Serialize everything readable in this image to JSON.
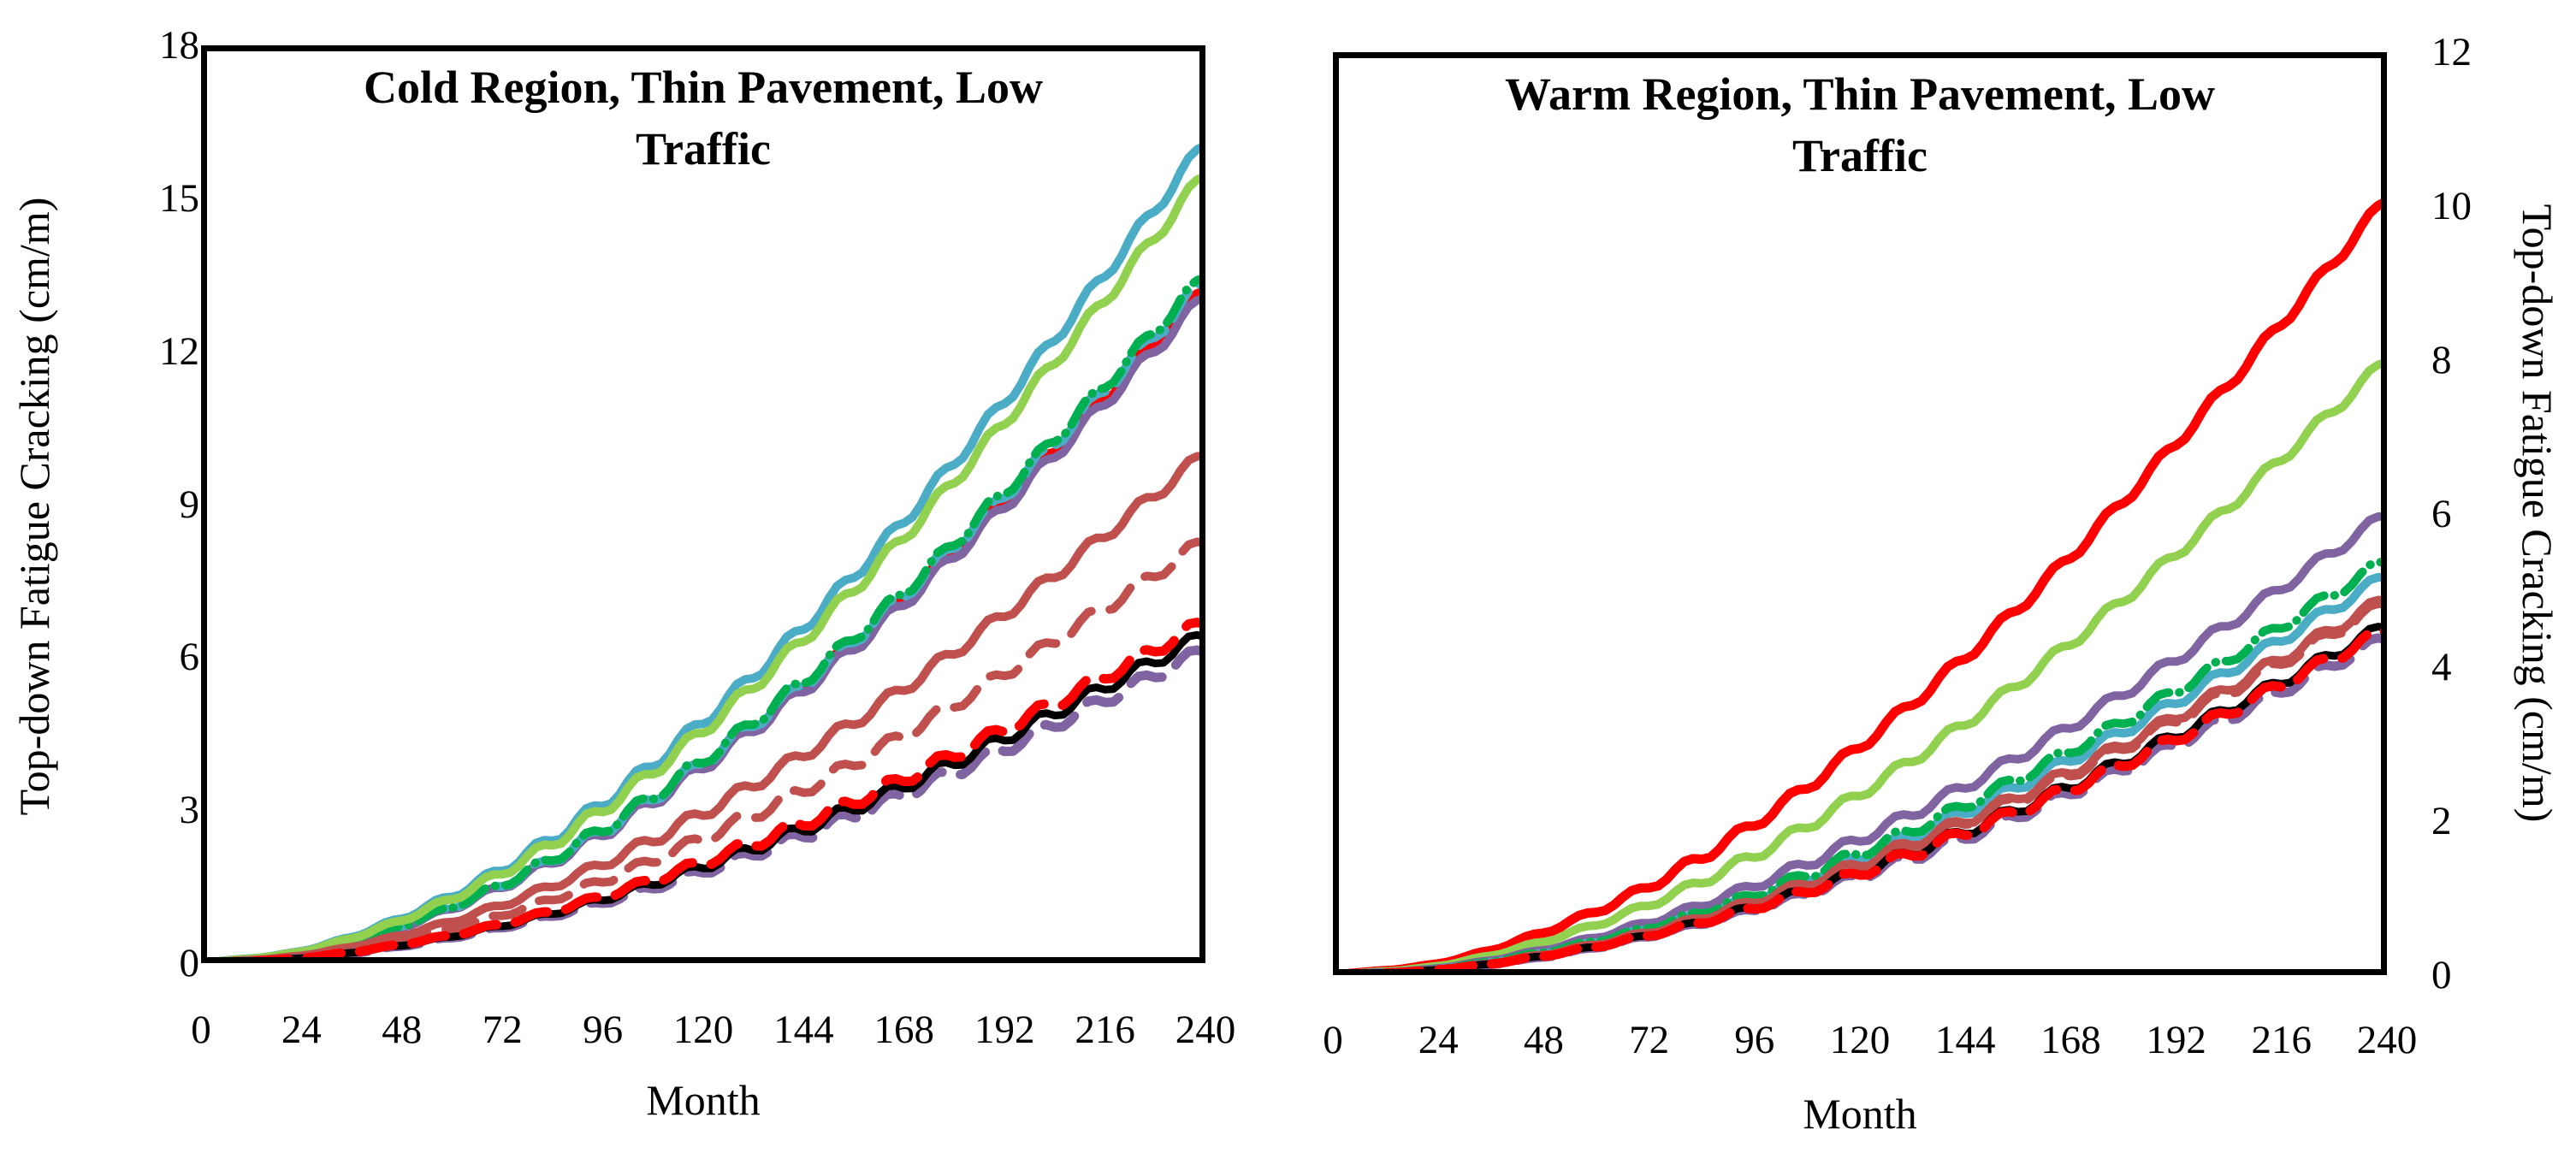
{
  "figure": {
    "background": "#FFFFFF",
    "panel_count": 2
  },
  "chart_data": [
    {
      "type": "line",
      "panel": "left",
      "title_lines": [
        "Cold Region, Thin Pavement, Low",
        "Traffic"
      ],
      "x_axis": {
        "label": "Month",
        "min": 0,
        "max": 240,
        "tick_step": 24,
        "ticks": [
          0,
          24,
          48,
          72,
          96,
          120,
          144,
          168,
          192,
          216,
          240
        ]
      },
      "y_axis": {
        "label": "Top-down Fatigue Cracking (cm/m)",
        "min": 0,
        "max": 18,
        "tick_step": 3,
        "ticks": [
          0,
          3,
          6,
          9,
          12,
          15,
          18
        ],
        "side": "left"
      },
      "grid": false,
      "legend": "none",
      "x_months": [
        0,
        24,
        48,
        72,
        96,
        120,
        144,
        168,
        192,
        216,
        240
      ],
      "series": [
        {
          "name": "red-solid",
          "color": "#FF0000",
          "dash": "solid",
          "width": 9,
          "values": [
            0,
            0.2,
            0.73,
            1.52,
            2.58,
            3.91,
            5.43,
            7.16,
            9.08,
            11.13,
            13.25
          ]
        },
        {
          "name": "purple-solid",
          "color": "#8064A2",
          "dash": "solid",
          "width": 10,
          "values": [
            0,
            0.2,
            0.72,
            1.51,
            2.55,
            3.86,
            5.37,
            7.07,
            8.97,
            11.0,
            13.1
          ]
        },
        {
          "name": "teal-dashed",
          "color": "#4BACC6",
          "dash": "dashed",
          "dash_pattern": [
            36,
            16
          ],
          "dash_offset": 0,
          "width": 10,
          "values": [
            0,
            0.2,
            0.74,
            1.54,
            2.61,
            3.95,
            5.49,
            7.24,
            9.18,
            11.26,
            13.4
          ]
        },
        {
          "name": "green-dash-dot",
          "color": "#00B050",
          "dash": "dash-dot",
          "dash_pattern": [
            32,
            12,
            0.5,
            12
          ],
          "dash_offset": 22,
          "width": 10,
          "values": [
            0,
            0.2,
            0.74,
            1.55,
            2.63,
            3.98,
            5.54,
            7.29,
            9.25,
            11.34,
            13.5
          ]
        },
        {
          "name": "teal-solid",
          "color": "#4BACC6",
          "dash": "solid",
          "width": 10,
          "values": [
            0,
            0.24,
            0.89,
            1.85,
            3.14,
            4.75,
            6.6,
            8.69,
            11.03,
            13.52,
            16.1
          ]
        },
        {
          "name": "green-solid",
          "color": "#92D050",
          "dash": "solid",
          "width": 10,
          "values": [
            0,
            0.23,
            0.85,
            1.78,
            3.02,
            4.57,
            6.36,
            8.37,
            10.62,
            13.02,
            15.5
          ]
        },
        {
          "name": "brown-solid",
          "color": "#C0504D",
          "dash": "solid",
          "width": 10,
          "values": [
            0,
            0.15,
            0.55,
            1.15,
            1.95,
            2.95,
            4.1,
            5.4,
            6.85,
            8.4,
            10.0
          ]
        },
        {
          "name": "brown-dashed",
          "color": "#C0504D",
          "dash": "dashed",
          "dash_pattern": [
            36,
            22
          ],
          "dash_offset": 0,
          "width": 10,
          "values": [
            0,
            0.12,
            0.46,
            0.95,
            1.62,
            2.45,
            3.4,
            4.48,
            5.69,
            6.97,
            8.3
          ]
        },
        {
          "name": "purple-dashed",
          "color": "#8064A2",
          "dash": "dashed",
          "dash_pattern": [
            40,
            22
          ],
          "dash_offset": 31,
          "width": 11,
          "values": [
            0,
            0.09,
            0.34,
            0.71,
            1.2,
            1.81,
            2.52,
            3.32,
            4.21,
            5.17,
            6.15
          ]
        },
        {
          "name": "black-solid",
          "color": "#000000",
          "dash": "solid",
          "width": 9,
          "values": [
            0,
            0.1,
            0.35,
            0.74,
            1.26,
            1.9,
            2.64,
            3.48,
            4.42,
            5.42,
            6.45
          ]
        },
        {
          "name": "red-dashed",
          "color": "#FF0000",
          "dash": "dashed",
          "dash_pattern": [
            40,
            22
          ],
          "dash_offset": 0,
          "width": 11,
          "values": [
            0,
            0.1,
            0.37,
            0.77,
            1.31,
            1.98,
            2.75,
            3.62,
            4.59,
            5.63,
            6.7
          ]
        }
      ]
    },
    {
      "type": "line",
      "panel": "right",
      "title_lines": [
        "Warm Region, Thin Pavement, Low",
        "Traffic"
      ],
      "x_axis": {
        "label": "Month",
        "min": 0,
        "max": 240,
        "tick_step": 24,
        "ticks": [
          0,
          24,
          48,
          72,
          96,
          120,
          144,
          168,
          192,
          216,
          240
        ]
      },
      "y_axis": {
        "label": "Top-down Fatigue Cracking (cm/m)",
        "min": 0,
        "max": 12,
        "tick_step": 2,
        "ticks": [
          0,
          2,
          4,
          6,
          8,
          10,
          12
        ],
        "side": "right"
      },
      "grid": false,
      "legend": "none",
      "x_months": [
        0,
        24,
        48,
        72,
        96,
        120,
        144,
        168,
        192,
        216,
        240
      ],
      "series": [
        {
          "name": "teal-dashed",
          "color": "#4BACC6",
          "dash": "dashed",
          "dash_pattern": [
            36,
            16
          ],
          "dash_offset": 0,
          "width": 10,
          "values": [
            0,
            0.08,
            0.29,
            0.6,
            1.01,
            1.53,
            2.13,
            2.81,
            3.56,
            4.37,
            5.2
          ]
        },
        {
          "name": "brown-dashed",
          "color": "#C0504D",
          "dash": "dashed",
          "dash_pattern": [
            36,
            22
          ],
          "dash_offset": 0,
          "width": 10,
          "values": [
            0,
            0.07,
            0.27,
            0.56,
            0.95,
            1.43,
            1.99,
            2.62,
            3.32,
            4.07,
            4.85
          ]
        },
        {
          "name": "red-solid",
          "color": "#FF0000",
          "dash": "solid",
          "width": 11,
          "values": [
            0,
            0.15,
            0.56,
            1.16,
            1.97,
            2.98,
            4.14,
            5.45,
            6.92,
            8.48,
            10.1
          ]
        },
        {
          "name": "green-solid",
          "color": "#92D050",
          "dash": "solid",
          "width": 10,
          "values": [
            0,
            0.12,
            0.44,
            0.92,
            1.56,
            2.36,
            3.28,
            4.32,
            5.48,
            6.72,
            8.0
          ]
        },
        {
          "name": "purple-solid",
          "color": "#8064A2",
          "dash": "solid",
          "width": 10,
          "values": [
            0,
            0.09,
            0.33,
            0.69,
            1.17,
            1.77,
            2.46,
            3.24,
            4.11,
            5.04,
            6.0
          ]
        },
        {
          "name": "teal-solid",
          "color": "#4BACC6",
          "dash": "solid",
          "width": 10,
          "values": [
            0,
            0.08,
            0.29,
            0.6,
            1.01,
            1.53,
            2.13,
            2.81,
            3.56,
            4.37,
            5.2
          ]
        },
        {
          "name": "green-dash-dot",
          "color": "#00B050",
          "dash": "dash-dot",
          "dash_pattern": [
            32,
            12,
            0.5,
            12
          ],
          "dash_offset": 22,
          "width": 10,
          "values": [
            0,
            0.08,
            0.3,
            0.62,
            1.05,
            1.59,
            2.21,
            2.92,
            3.7,
            4.54,
            5.4
          ]
        },
        {
          "name": "brown-solid",
          "color": "#C0504D",
          "dash": "solid",
          "width": 10,
          "values": [
            0,
            0.07,
            0.27,
            0.56,
            0.96,
            1.45,
            2.01,
            2.65,
            3.36,
            4.12,
            4.9
          ]
        },
        {
          "name": "purple-dashed",
          "color": "#8064A2",
          "dash": "dashed",
          "dash_pattern": [
            40,
            22
          ],
          "dash_offset": 31,
          "width": 11,
          "values": [
            0,
            0.07,
            0.24,
            0.51,
            0.86,
            1.3,
            1.8,
            2.38,
            3.01,
            3.7,
            4.4
          ]
        },
        {
          "name": "black-solid",
          "color": "#000000",
          "dash": "solid",
          "width": 9,
          "values": [
            0,
            0.07,
            0.25,
            0.52,
            0.89,
            1.34,
            1.87,
            2.46,
            3.12,
            3.82,
            4.55
          ]
        },
        {
          "name": "red-dashed",
          "color": "#FF0000",
          "dash": "dashed",
          "dash_pattern": [
            40,
            22
          ],
          "dash_offset": 0,
          "width": 11,
          "values": [
            0,
            0.07,
            0.25,
            0.52,
            0.88,
            1.33,
            1.85,
            2.43,
            3.08,
            3.78,
            4.5
          ]
        }
      ]
    }
  ]
}
